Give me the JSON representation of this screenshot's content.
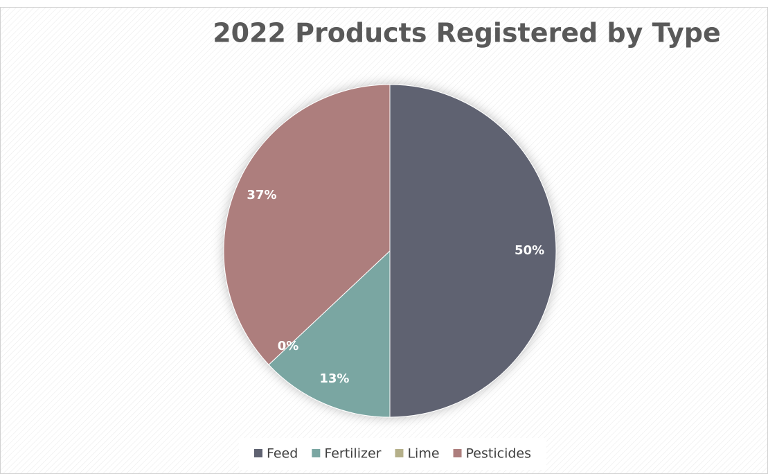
{
  "chart_data": {
    "type": "pie",
    "title": "2022 Products Registered by Type",
    "categories": [
      "Feed",
      "Fertilizer",
      "Lime",
      "Pesticides"
    ],
    "values": [
      50,
      13,
      0,
      37
    ],
    "value_labels": [
      "50%",
      "13%",
      "0%",
      "37%"
    ],
    "colors": [
      "#5f6271",
      "#7aa6a2",
      "#b5b08a",
      "#ad7e7d"
    ],
    "legend": "bottom"
  }
}
